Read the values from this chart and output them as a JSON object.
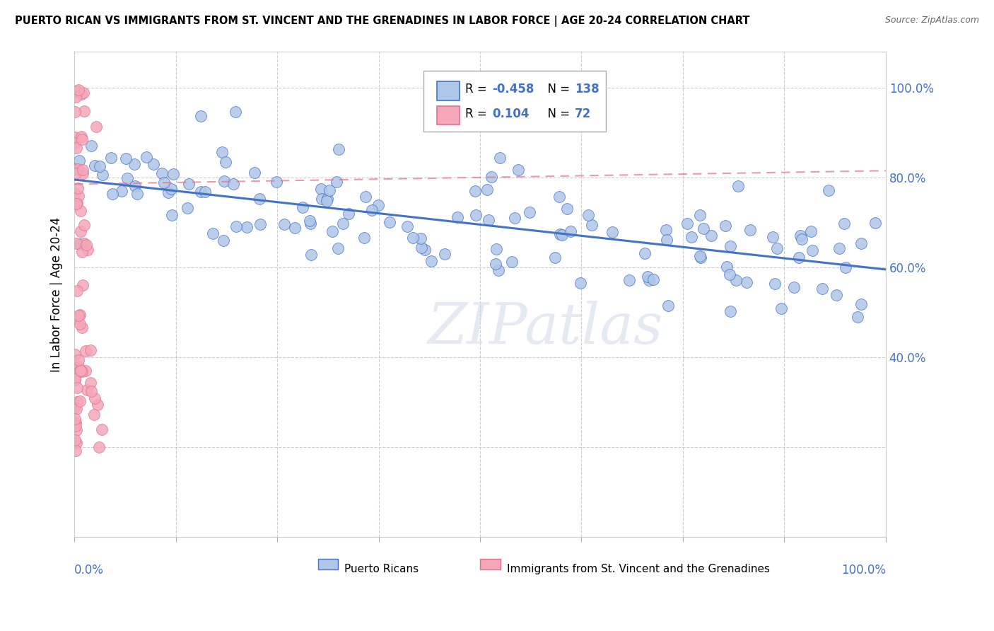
{
  "title": "PUERTO RICAN VS IMMIGRANTS FROM ST. VINCENT AND THE GRENADINES IN LABOR FORCE | AGE 20-24 CORRELATION CHART",
  "source": "Source: ZipAtlas.com",
  "ylabel": "In Labor Force | Age 20-24",
  "legend_blue_R": "-0.458",
  "legend_blue_N": "138",
  "legend_pink_R": "0.104",
  "legend_pink_N": "72",
  "legend_blue_label": "Puerto Ricans",
  "legend_pink_label": "Immigrants from St. Vincent and the Grenadines",
  "blue_scatter_color": "#aec6e8",
  "pink_scatter_color": "#f4a7b9",
  "blue_edge_color": "#4472c4",
  "pink_edge_color": "#e07090",
  "trendline_blue_color": "#4472c4",
  "trendline_pink_color": "#e07090",
  "watermark": "ZIPatlas",
  "background_color": "#ffffff",
  "blue_trend_y_start": 0.795,
  "blue_trend_y_end": 0.595,
  "pink_trend_y_start": 0.785,
  "pink_trend_y_end": 0.815,
  "right_ytick_labels": [
    "100.0%",
    "80.0%",
    "60.0%",
    "40.0%"
  ],
  "right_ytick_values": [
    1.0,
    0.8,
    0.6,
    0.4
  ],
  "xlim": [
    0.0,
    1.0
  ],
  "ylim": [
    0.0,
    1.08
  ]
}
